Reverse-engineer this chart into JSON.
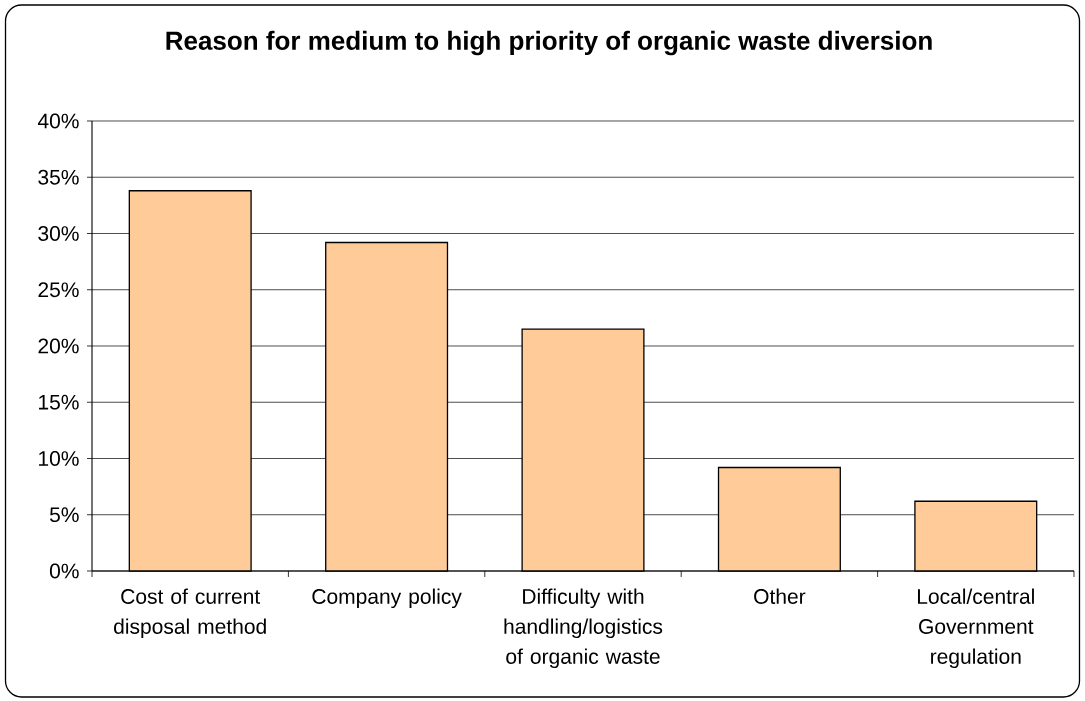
{
  "chart_data": {
    "type": "bar",
    "title": "Reason for medium to high priority of organic waste diversion",
    "categories": [
      "Cost of current disposal method",
      "Company policy",
      "Difficulty with handling/logistics of organic waste",
      "Other",
      "Local/central Government regulation"
    ],
    "values": [
      33.8,
      29.2,
      21.5,
      9.2,
      6.2
    ],
    "color": "#ffcc99",
    "ylim": [
      0,
      40
    ],
    "yticks": [
      {
        "value": 0,
        "label": "0%"
      },
      {
        "value": 5,
        "label": "5%"
      },
      {
        "value": 10,
        "label": "10%"
      },
      {
        "value": 15,
        "label": "15%"
      },
      {
        "value": 20,
        "label": "20%"
      },
      {
        "value": 25,
        "label": "25%"
      },
      {
        "value": 30,
        "label": "30%"
      },
      {
        "value": 35,
        "label": "35%"
      },
      {
        "value": 40,
        "label": "40%"
      }
    ],
    "grid": "y"
  }
}
